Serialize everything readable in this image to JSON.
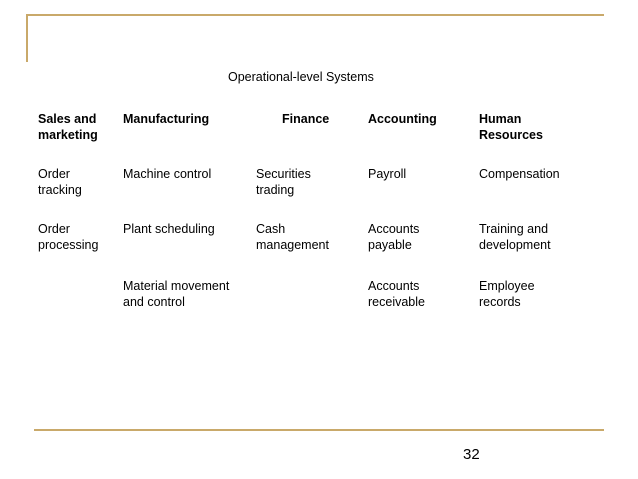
{
  "slide": {
    "subtitle": "Operational-level Systems",
    "page_number": "32",
    "accent_color": "#c9a96a",
    "columns": [
      {
        "header": "Sales and\nmarketing",
        "items": [
          "Order\ntracking",
          "Order\nprocessing",
          ""
        ]
      },
      {
        "header": "Manufacturing",
        "items": [
          "Machine control",
          "Plant scheduling",
          "Material movement\nand control"
        ]
      },
      {
        "header": "Finance",
        "items": [
          "Securities\ntrading",
          "Cash\nmanagement",
          ""
        ]
      },
      {
        "header": "Accounting",
        "items": [
          "Payroll",
          "Accounts\npayable",
          "Accounts\nreceivable"
        ]
      },
      {
        "header": "Human\nResources",
        "items": [
          "Compensation",
          "Training and\ndevelopment",
          "Employee\nrecords"
        ]
      }
    ]
  }
}
